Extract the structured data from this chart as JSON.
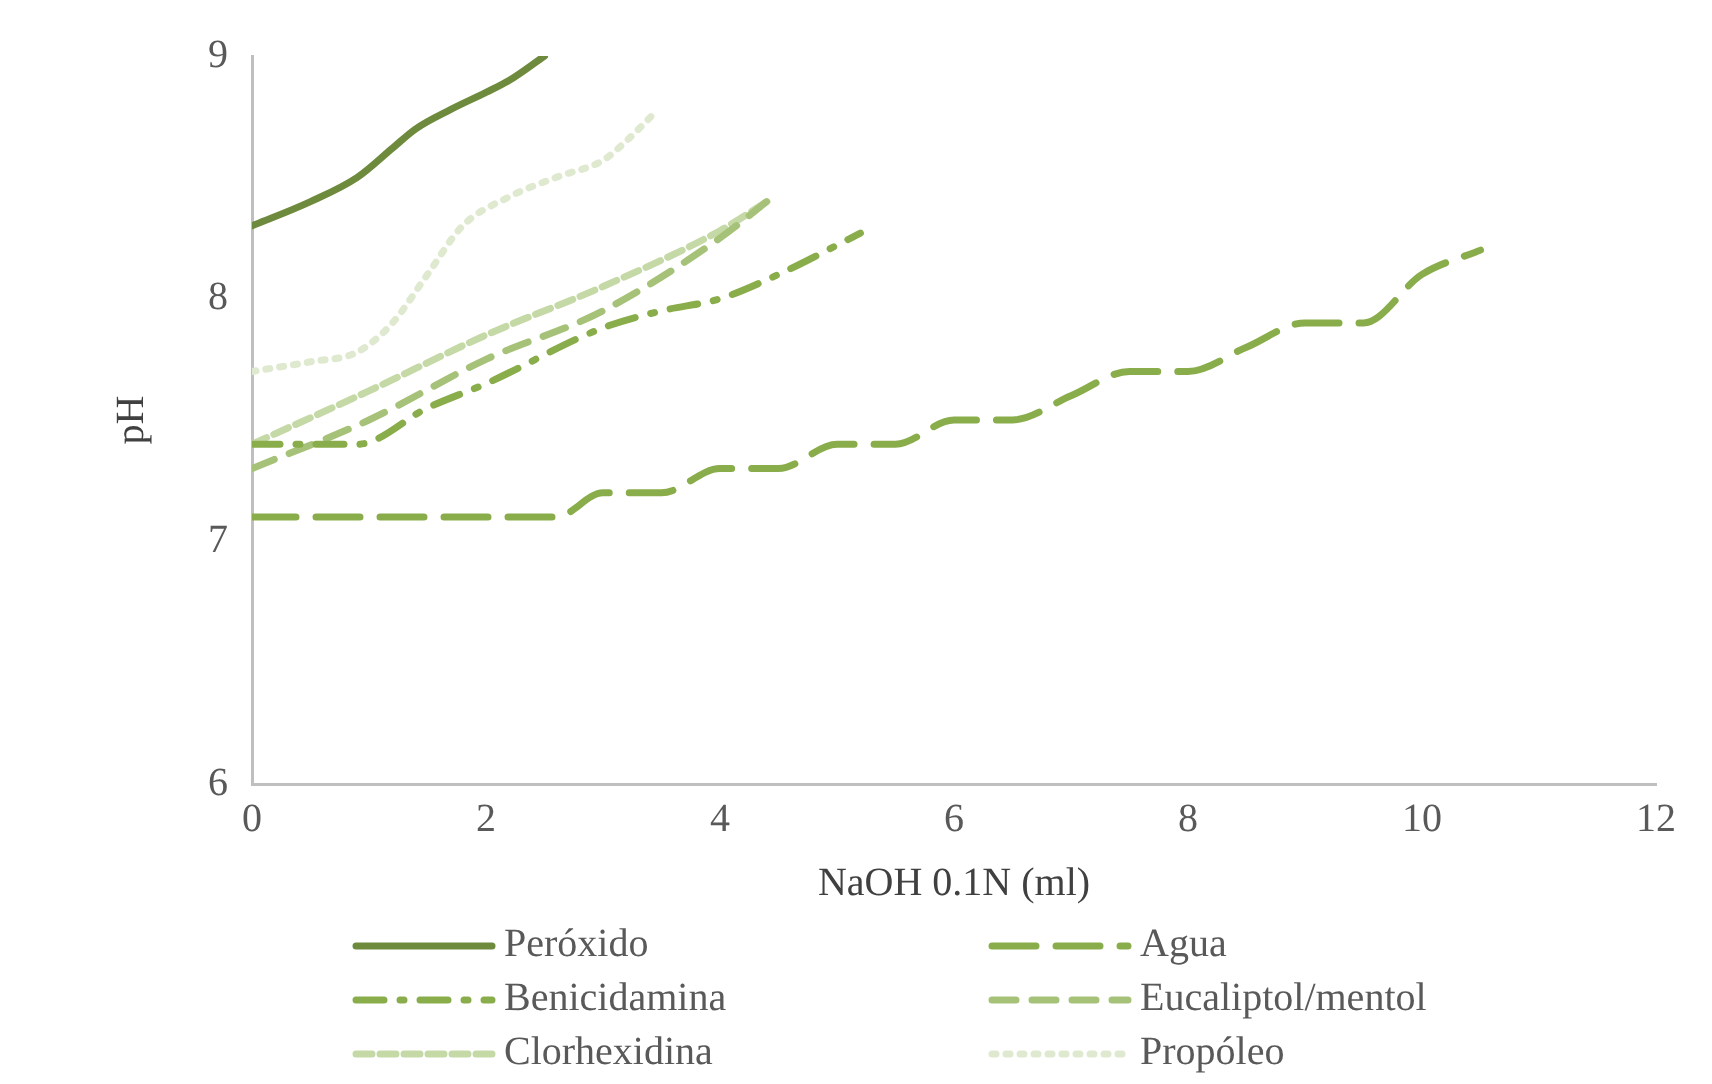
{
  "chart_data": {
    "type": "line",
    "xlabel": "NaOH 0.1N (ml)",
    "ylabel": "pH",
    "xlim": [
      0,
      12
    ],
    "xticks": [
      0,
      2,
      4,
      6,
      8,
      10,
      12
    ],
    "ylim": [
      6,
      9
    ],
    "yticks": [
      6,
      7,
      8,
      9
    ],
    "grid": false,
    "legend": "bottom",
    "marker": "none",
    "series": [
      {
        "name": "Peróxido",
        "color": "#6e8b3d",
        "line_style": "solid",
        "x": [
          0,
          0.5,
          0.9,
          1.2,
          1.4,
          1.7,
          2,
          2.2,
          2.5
        ],
        "values": [
          8.3,
          8.4,
          8.5,
          8.62,
          8.7,
          8.78,
          8.85,
          8.9,
          9.0
        ]
      },
      {
        "name": "Agua",
        "color": "#8aad4b",
        "line_style": "dashed",
        "x": [
          0,
          1,
          2,
          2.6,
          3,
          3.5,
          4,
          4.5,
          5,
          5.5,
          6,
          6.5,
          7,
          7.5,
          8,
          8.5,
          9,
          9.5,
          10,
          10.5
        ],
        "values": [
          7.1,
          7.1,
          7.1,
          7.1,
          7.2,
          7.2,
          7.3,
          7.3,
          7.4,
          7.4,
          7.5,
          7.5,
          7.6,
          7.7,
          7.7,
          7.8,
          7.9,
          7.9,
          8.1,
          8.2
        ]
      },
      {
        "name": "Benicidamina",
        "color": "#8aad4b",
        "line_style": "dashdot",
        "x": [
          0,
          0.9,
          1.5,
          2,
          3,
          3.5,
          4,
          4.5,
          5.2
        ],
        "values": [
          7.4,
          7.4,
          7.55,
          7.65,
          7.88,
          7.95,
          8.0,
          8.1,
          8.27
        ]
      },
      {
        "name": "Eucaliptol/mentol",
        "color": "#a5c278",
        "line_style": "dashed",
        "x": [
          0,
          1,
          2,
          3,
          4,
          4.4
        ],
        "values": [
          7.3,
          7.5,
          7.75,
          7.95,
          8.25,
          8.4
        ]
      },
      {
        "name": "Clorhexidina",
        "color": "#c5d9a6",
        "line_style": "dashed",
        "x": [
          0,
          1,
          2,
          3,
          4,
          4.4
        ],
        "values": [
          7.4,
          7.62,
          7.85,
          8.05,
          8.28,
          8.4
        ]
      },
      {
        "name": "Propóleo",
        "color": "#dfe9cf",
        "line_style": "dotted",
        "x": [
          0,
          0.5,
          0.9,
          1.2,
          1.5,
          1.8,
          2.2,
          2.6,
          3,
          3.2,
          3.45
        ],
        "values": [
          7.7,
          7.74,
          7.78,
          7.9,
          8.1,
          8.3,
          8.42,
          8.5,
          8.57,
          8.65,
          8.77
        ]
      }
    ]
  }
}
